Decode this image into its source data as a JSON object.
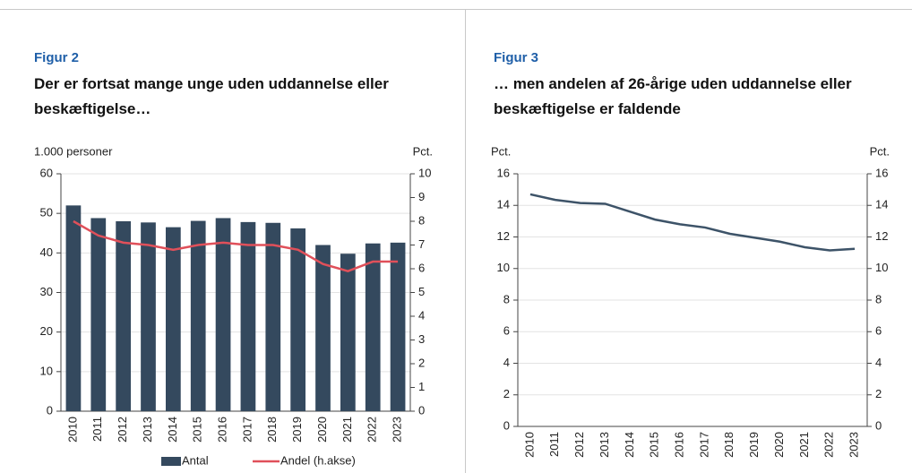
{
  "chart_data": [
    {
      "type": "bar",
      "label": "Figur 2",
      "title": "Der er fortsat mange unge uden uddannelse eller beskæftigelse…",
      "ylabel": "1.000 personer",
      "y2label": "Pct.",
      "categories": [
        "2010",
        "2011",
        "2012",
        "2013",
        "2014",
        "2015",
        "2016",
        "2017",
        "2018",
        "2019",
        "2020",
        "2021",
        "2022",
        "2023"
      ],
      "series": [
        {
          "name": "Antal",
          "type": "bar",
          "color": "#34495e",
          "values": [
            52,
            48.8,
            48,
            47.7,
            46.5,
            48.1,
            48.8,
            47.8,
            47.6,
            46.2,
            42,
            39.8,
            42.4,
            42.6
          ]
        },
        {
          "name": "Andel (h.akse)",
          "type": "line",
          "axis": "y2",
          "color": "#e0505a",
          "values": [
            8.0,
            7.4,
            7.1,
            7.0,
            6.8,
            7.0,
            7.1,
            7.0,
            7.0,
            6.8,
            6.2,
            5.9,
            6.3,
            6.3
          ]
        }
      ],
      "ylim": [
        0,
        60
      ],
      "yticks": [
        0,
        10,
        20,
        30,
        40,
        50,
        60
      ],
      "y2lim": [
        0,
        10
      ],
      "y2ticks": [
        0,
        1,
        2,
        3,
        4,
        5,
        6,
        7,
        8,
        9,
        10
      ],
      "grid": true,
      "legend": "bottom"
    },
    {
      "type": "line",
      "label": "Figur 3",
      "title": "… men andelen af 26-årige uden uddannelse eller beskæftigelse er faldende",
      "ylabel": "Pct.",
      "y2label": "Pct.",
      "categories": [
        "2010",
        "2011",
        "2012",
        "2013",
        "2014",
        "2015",
        "2016",
        "2017",
        "2018",
        "2019",
        "2020",
        "2021",
        "2022",
        "2023"
      ],
      "series": [
        {
          "type": "line",
          "color": "#3d5368",
          "values": [
            14.7,
            14.35,
            14.15,
            14.1,
            13.6,
            13.1,
            12.8,
            12.6,
            12.2,
            11.95,
            11.7,
            11.35,
            11.15,
            11.25
          ]
        }
      ],
      "ylim": [
        0,
        16
      ],
      "yticks": [
        0,
        2,
        4,
        6,
        8,
        10,
        12,
        14,
        16
      ],
      "y2lim": [
        0,
        16
      ],
      "y2ticks": [
        0,
        2,
        4,
        6,
        8,
        10,
        12,
        14,
        16
      ],
      "grid": true
    }
  ]
}
